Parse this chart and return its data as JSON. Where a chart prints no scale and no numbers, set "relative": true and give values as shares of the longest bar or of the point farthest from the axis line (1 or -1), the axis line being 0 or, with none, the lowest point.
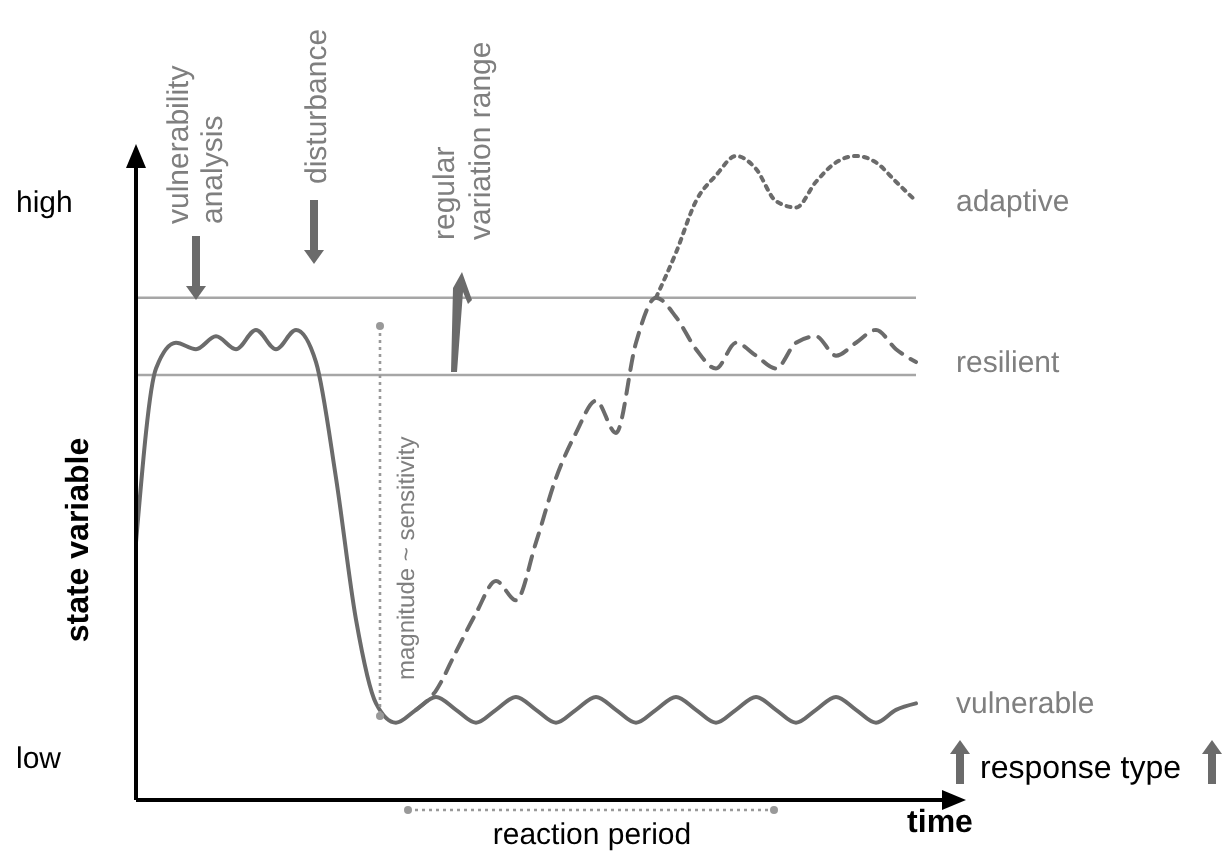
{
  "chart_data": {
    "type": "line",
    "relative": true,
    "xlabel": "time",
    "ylabel": "state variable",
    "categories": [
      null,
      null,
      null,
      null,
      null,
      null,
      null,
      null,
      null,
      null,
      null,
      null,
      null,
      null,
      null,
      null,
      null,
      null,
      null,
      null,
      null,
      null,
      null,
      null,
      null,
      null,
      null,
      null,
      null,
      null,
      null,
      null,
      null,
      null,
      null,
      null,
      null,
      null,
      null,
      null
    ],
    "series": [
      {
        "name": "vulnerable",
        "color": "#6b6b6b",
        "line_style": "solid",
        "values": [
          0.4,
          0.67,
          0.71,
          0.7,
          0.72,
          0.7,
          0.73,
          0.7,
          0.73,
          0.68,
          0.5,
          0.28,
          0.15,
          0.12,
          0.14,
          0.16,
          0.14,
          0.12,
          0.14,
          0.16,
          0.14,
          0.12,
          0.14,
          0.16,
          0.14,
          0.12,
          0.14,
          0.16,
          0.14,
          0.12,
          0.14,
          0.16,
          0.14,
          0.12,
          0.14,
          0.16,
          0.14,
          0.12,
          0.14,
          0.15
        ]
      },
      {
        "name": "resilient",
        "color": "#6b6b6b",
        "line_style": "dashed",
        "values": [
          null,
          null,
          null,
          null,
          null,
          null,
          null,
          null,
          null,
          null,
          null,
          null,
          null,
          null,
          0.14,
          0.17,
          0.23,
          0.29,
          0.34,
          0.31,
          0.4,
          0.5,
          0.57,
          0.62,
          0.57,
          0.71,
          0.78,
          0.75,
          0.7,
          0.67,
          0.71,
          0.69,
          0.67,
          0.71,
          0.72,
          0.69,
          0.71,
          0.73,
          0.7,
          0.68
        ]
      },
      {
        "name": "adaptive",
        "color": "#6b6b6b",
        "line_style": "dotted",
        "values": [
          null,
          null,
          null,
          null,
          null,
          null,
          null,
          null,
          null,
          null,
          null,
          null,
          null,
          null,
          null,
          null,
          null,
          null,
          null,
          null,
          null,
          null,
          null,
          null,
          null,
          null,
          0.78,
          0.85,
          0.93,
          0.97,
          1.0,
          0.98,
          0.93,
          0.92,
          0.96,
          0.99,
          1.0,
          0.99,
          0.96,
          0.93
        ]
      }
    ],
    "ref_lines": [
      {
        "axis": "y",
        "value": 0.78,
        "color": "#a6a6a6"
      },
      {
        "axis": "y",
        "value": 0.66,
        "color": "#a6a6a6"
      }
    ],
    "annotations": [
      "high",
      "low",
      "vulnerability analysis",
      "disturbance",
      "regular variation range",
      "magnitude ~ sensitivity",
      "reaction period",
      "response type"
    ]
  }
}
